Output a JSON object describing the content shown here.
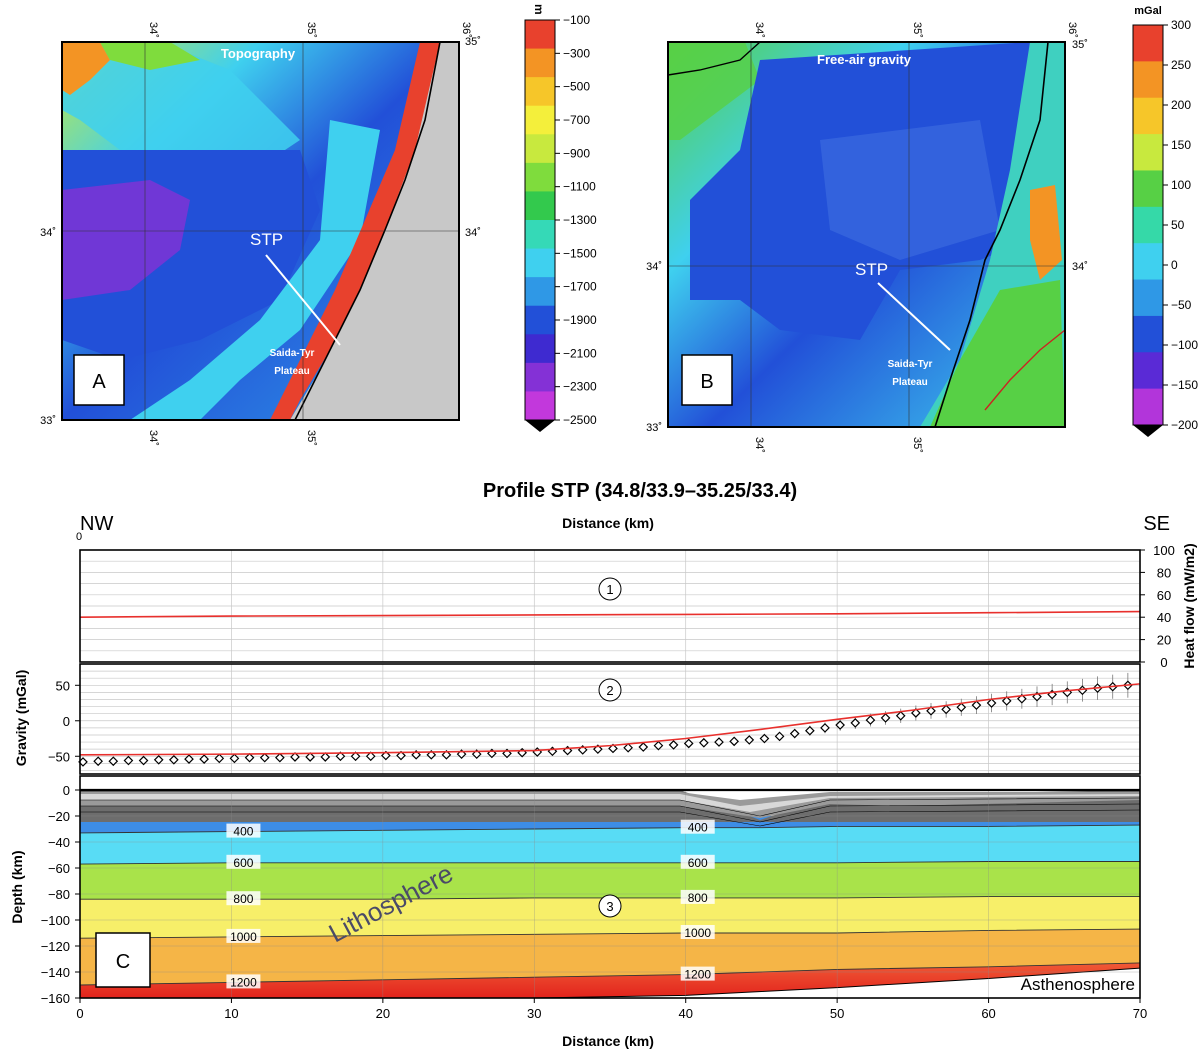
{
  "panel_a": {
    "letter": "A",
    "title": "Topography",
    "lon_ticks": [
      "34˚",
      "35˚",
      "36˚"
    ],
    "lat_ticks": [
      "35˚",
      "34˚",
      "33˚"
    ],
    "label_stp": "STP",
    "label_plateau_1": "Saida-Tyr",
    "label_plateau_2": "Plateau",
    "cbar_unit": "m",
    "cbar_ticks": [
      "−100",
      "−300",
      "−500",
      "−700",
      "−900",
      "−1100",
      "−1300",
      "−1500",
      "−1700",
      "−1900",
      "−2100",
      "−2300",
      "−2500"
    ],
    "cbar_colors": [
      "#e8412d",
      "#f39424",
      "#f6c629",
      "#f4ef3b",
      "#c8e93e",
      "#7fdc3d",
      "#33c94d",
      "#35d9b7",
      "#3fd0ef",
      "#2f98e6",
      "#2250d8",
      "#3e2ad0",
      "#8431d6",
      "#c238dc"
    ]
  },
  "panel_b": {
    "letter": "B",
    "title": "Free-air gravity",
    "lon_ticks": [
      "34˚",
      "35˚",
      "36˚"
    ],
    "lat_ticks": [
      "35˚",
      "34˚",
      "33˚"
    ],
    "label_stp": "STP",
    "label_plateau_1": "Saida-Tyr",
    "label_plateau_2": "Plateau",
    "cbar_unit": "mGal",
    "cbar_ticks": [
      "300",
      "250",
      "200",
      "150",
      "100",
      "50",
      "0",
      "−50",
      "−100",
      "−150",
      "−200"
    ],
    "cbar_colors": [
      "#e8412d",
      "#f39424",
      "#f6c629",
      "#c8e93e",
      "#57d045",
      "#35d9a8",
      "#3fd0ef",
      "#2f98e6",
      "#2250d8",
      "#5a2ad6",
      "#b235da"
    ]
  },
  "panel_c": {
    "letter": "C",
    "title": "Profile STP (34.8/33.9–35.25/33.4)",
    "left_dir": "NW",
    "right_dir": "SE",
    "top_axis_label": "Distance (km)",
    "top_zero": "0",
    "bottom_axis_label": "Distance (km)",
    "heat_label": "Heat flow (mW/m2)",
    "gravity_label": "Gravity (mGal)",
    "depth_label": "Depth (km)",
    "lithosphere": "Lithosphere",
    "asthenosphere": "Asthenosphere",
    "circle_1": "1",
    "circle_2": "2",
    "circle_3": "3"
  },
  "chart_data": [
    {
      "type": "line",
      "title": "Profile STP (34.8/33.9–35.25/33.4)",
      "ylabel": "Heat flow (mW/m2)",
      "xlabel": "Distance (km)",
      "xlim": [
        0,
        70
      ],
      "ylim": [
        0,
        100
      ],
      "y_ticks": [
        "0",
        "20",
        "40",
        "60",
        "80",
        "100"
      ],
      "x": [
        0,
        10,
        20,
        30,
        40,
        50,
        60,
        70
      ],
      "series": [
        {
          "values": [
            40,
            41,
            41.5,
            42,
            42.5,
            43,
            44,
            45
          ]
        }
      ],
      "grid": true
    },
    {
      "type": "scatter",
      "ylabel": "Gravity (mGal)",
      "xlim": [
        0,
        70
      ],
      "ylim": [
        -75,
        80
      ],
      "y_ticks": [
        "50",
        "0",
        "−50"
      ],
      "model_x": [
        0,
        10,
        20,
        30,
        35,
        40,
        45,
        50,
        55,
        60,
        65,
        70
      ],
      "model_y": [
        -48,
        -47,
        -45,
        -42,
        -35,
        -25,
        -12,
        2,
        15,
        30,
        42,
        52
      ],
      "observed_x": [
        0,
        1,
        2,
        3,
        4,
        5,
        6,
        7,
        8,
        9,
        10,
        11,
        12,
        13,
        14,
        15,
        16,
        17,
        18,
        19,
        20,
        21,
        22,
        23,
        24,
        25,
        26,
        27,
        28,
        29,
        30,
        31,
        32,
        33,
        34,
        35,
        36,
        37,
        38,
        39,
        40,
        41,
        42,
        43,
        44,
        45,
        46,
        47,
        48,
        49,
        50,
        51,
        52,
        53,
        54,
        55,
        56,
        57,
        58,
        59,
        60,
        61,
        62,
        63,
        64,
        65,
        66,
        67,
        68,
        69
      ],
      "observed_y": [
        -58,
        -57,
        -57,
        -56,
        -56,
        -55,
        -55,
        -54,
        -54,
        -53,
        -53,
        -52,
        -52,
        -52,
        -51,
        -51,
        -51,
        -50,
        -50,
        -50,
        -49,
        -49,
        -48,
        -48,
        -48,
        -47,
        -47,
        -46,
        -46,
        -45,
        -44,
        -43,
        -42,
        -41,
        -40,
        -39,
        -38,
        -37,
        -35,
        -34,
        -32,
        -31,
        -30,
        -29,
        -27,
        -25,
        -22,
        -18,
        -14,
        -10,
        -6,
        -3,
        1,
        4,
        7,
        11,
        14,
        16,
        19,
        22,
        25,
        28,
        31,
        34,
        37,
        40,
        43,
        46,
        48,
        50
      ],
      "grid": true
    },
    {
      "type": "area",
      "ylabel": "Depth (km)",
      "xlabel": "Distance (km)",
      "xlim": [
        0,
        70
      ],
      "ylim": [
        -160,
        0
      ],
      "x_ticks": [
        "0",
        "10",
        "20",
        "30",
        "40",
        "50",
        "60",
        "70"
      ],
      "y_ticks": [
        "0",
        "−20",
        "−40",
        "−60",
        "−80",
        "−100",
        "−120",
        "−140",
        "−160"
      ],
      "x": [
        0,
        10,
        20,
        30,
        40,
        45,
        50,
        60,
        70
      ],
      "isotherms": [
        {
          "name": "400",
          "depth": [
            -33,
            -32,
            -31,
            -30,
            -29,
            -29,
            -28,
            -28,
            -27
          ]
        },
        {
          "name": "600",
          "depth": [
            -57,
            -56,
            -56,
            -56,
            -56,
            -56,
            -56,
            -55,
            -55
          ]
        },
        {
          "name": "800",
          "depth": [
            -84,
            -84,
            -84,
            -83,
            -83,
            -83,
            -83,
            -82,
            -82
          ]
        },
        {
          "name": "1000",
          "depth": [
            -114,
            -113,
            -112,
            -111,
            -110,
            -110,
            -110,
            -108,
            -107
          ]
        },
        {
          "name": "1200",
          "depth": [
            -150,
            -148,
            -146,
            -144,
            -142,
            -140,
            -138,
            -136,
            -133
          ]
        }
      ],
      "lab": [
        -162,
        -162,
        -161,
        -160,
        -158,
        -155,
        -152,
        -145,
        -137
      ],
      "layer_colors": [
        "#3d8de6",
        "#58dcf5",
        "#a9e34a",
        "#f7ef69",
        "#f5b547",
        "#e8412d"
      ],
      "grid": true
    }
  ]
}
